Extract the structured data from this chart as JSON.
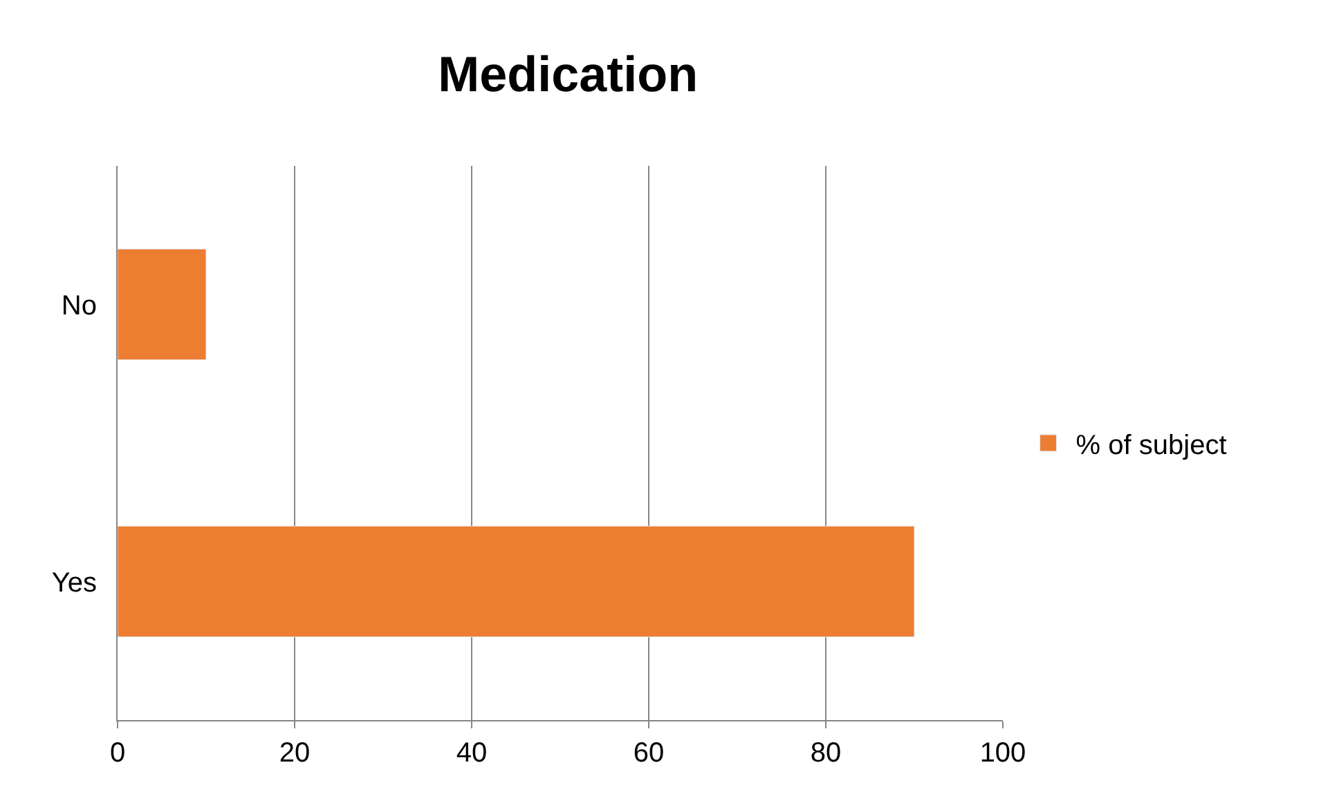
{
  "chart_data": {
    "type": "bar",
    "title": "Medication",
    "orientation": "horizontal",
    "categories": [
      "No",
      "Yes"
    ],
    "series": [
      {
        "name": "% of subject",
        "color": "#ed7d31",
        "values": [
          10,
          90
        ]
      }
    ],
    "xlim": [
      0,
      100
    ],
    "xticks": [
      0,
      20,
      40,
      60,
      80,
      100
    ],
    "grid": "x",
    "legend": "right"
  }
}
